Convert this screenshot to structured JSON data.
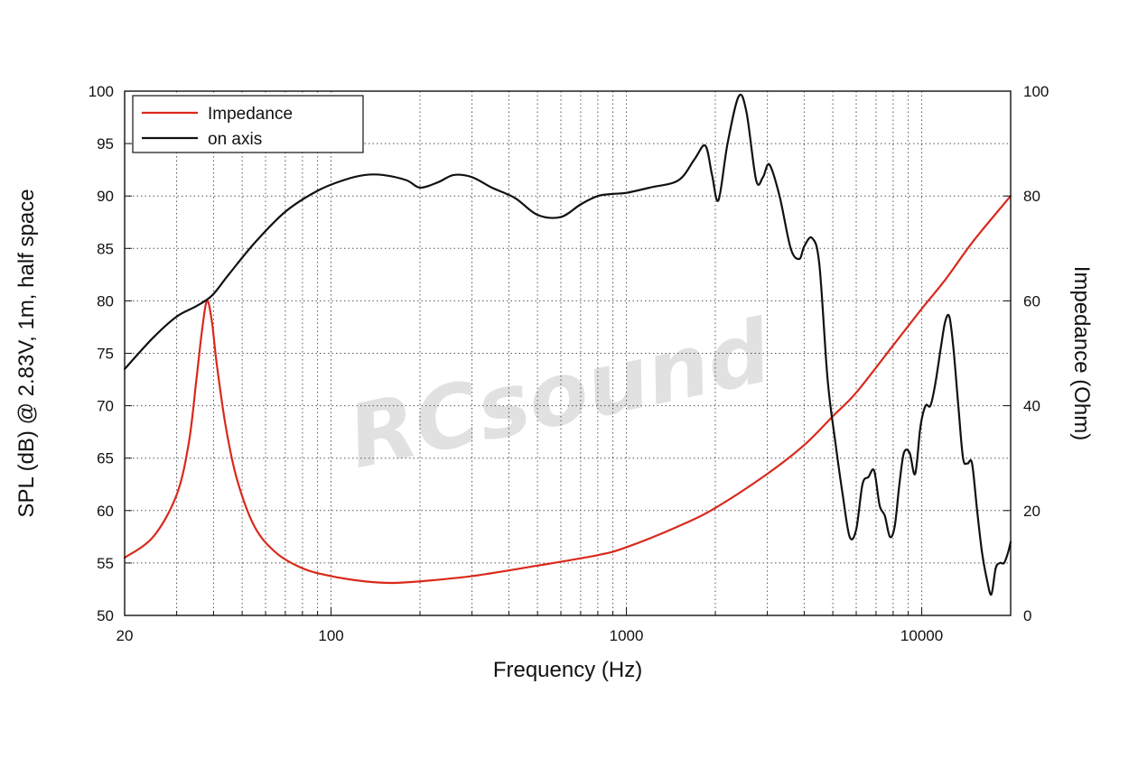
{
  "watermark": "RCsound",
  "chart_data": {
    "type": "line",
    "title": "",
    "xlabel": "Frequency (Hz)",
    "ylabel": "SPL (dB) @ 2.83V, 1m, half space",
    "y2label": "Impedance (Ohm)",
    "xscale": "log",
    "xlim": [
      20,
      20000
    ],
    "ylim": [
      50,
      100
    ],
    "y2lim": [
      0,
      100
    ],
    "grid": true,
    "legend_position": "top-left",
    "x_ticks": [
      {
        "value": 20,
        "label": "20"
      },
      {
        "value": 100,
        "label": "100"
      },
      {
        "value": 1000,
        "label": "1000"
      },
      {
        "value": 10000,
        "label": "10000"
      }
    ],
    "y_ticks": [
      50,
      55,
      60,
      65,
      70,
      75,
      80,
      85,
      90,
      95,
      100
    ],
    "y_tick_labels": [
      "50",
      "55",
      "60",
      "65",
      "70",
      "75",
      "80",
      "85",
      "90",
      "95",
      "100"
    ],
    "y2_ticks": [
      0,
      20,
      40,
      60,
      80,
      100
    ],
    "y2_tick_labels": [
      "0",
      "20",
      "40",
      "60",
      "80",
      "100"
    ],
    "series": [
      {
        "name": "Impedance",
        "color": "#d9291c",
        "axis": "right",
        "x": [
          20,
          25,
          30,
          33,
          35,
          36.5,
          38,
          39.5,
          41,
          44,
          48,
          55,
          65,
          80,
          100,
          130,
          160,
          200,
          300,
          500,
          800,
          1000,
          1500,
          2000,
          3000,
          4000,
          5000,
          6000,
          8000,
          10000,
          12000,
          15000,
          20000
        ],
        "y": [
          11,
          15,
          23,
          33,
          45,
          54,
          60,
          56,
          48,
          36,
          26,
          17,
          12,
          9,
          7.5,
          6.5,
          6.2,
          6.5,
          7.5,
          9.5,
          11.5,
          13,
          17,
          20.5,
          27,
          32.5,
          38,
          42.5,
          51.5,
          58.5,
          64,
          71.5,
          80
        ]
      },
      {
        "name": "on axis",
        "color": "#111111",
        "axis": "left",
        "x": [
          20,
          25,
          30,
          35,
          39.5,
          45,
          55,
          70,
          90,
          110,
          130,
          150,
          180,
          200,
          230,
          260,
          300,
          350,
          420,
          500,
          600,
          700,
          800,
          900,
          1000,
          1200,
          1500,
          1700,
          1850,
          1950,
          2050,
          2200,
          2400,
          2550,
          2750,
          2900,
          3050,
          3300,
          3600,
          3850,
          4000,
          4250,
          4500,
          4800,
          5100,
          5400,
          5700,
          6000,
          6300,
          6600,
          6900,
          7200,
          7500,
          7800,
          8100,
          8400,
          8700,
          9100,
          9500,
          9900,
          10300,
          10700,
          11100,
          11600,
          12000,
          12400,
          12800,
          13300,
          13800,
          14300,
          14800,
          15400,
          16000,
          16600,
          17200,
          17800,
          18400,
          19000,
          19600,
          20000
        ],
        "y": [
          73.5,
          76.5,
          78.5,
          79.5,
          80.5,
          82.5,
          85.5,
          88.5,
          90.5,
          91.5,
          92,
          92,
          91.5,
          90.8,
          91.3,
          92,
          91.8,
          90.8,
          89.8,
          88.2,
          88,
          89.2,
          90,
          90.2,
          90.3,
          90.8,
          91.5,
          93.5,
          94.8,
          92,
          89.6,
          95,
          99.5,
          98,
          91.5,
          91.8,
          93,
          90,
          85,
          84,
          85.2,
          86,
          83.5,
          72.5,
          66.5,
          61.5,
          57.5,
          58.2,
          62.5,
          63.2,
          63.8,
          60.5,
          59.5,
          57.5,
          58.5,
          62.5,
          65.5,
          65.5,
          63.5,
          68,
          70,
          70,
          72,
          75.5,
          78,
          78.5,
          75.5,
          70,
          65,
          64.5,
          64.5,
          60,
          56,
          53.5,
          52,
          54.5,
          55,
          55,
          56,
          57
        ]
      }
    ]
  }
}
